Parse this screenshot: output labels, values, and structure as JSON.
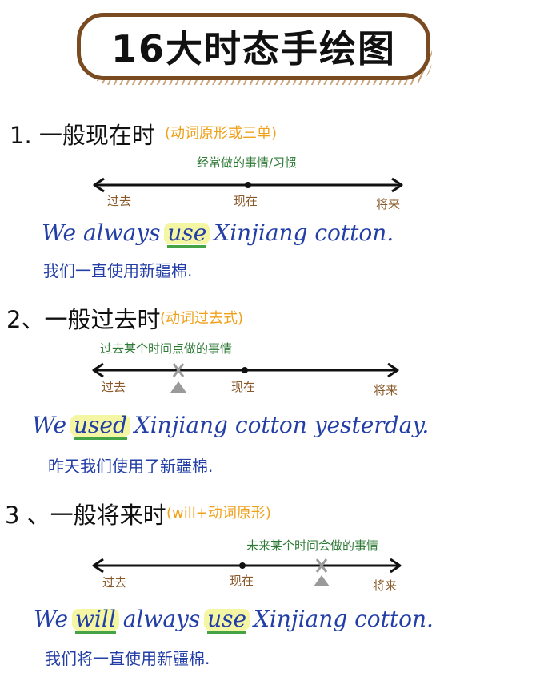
{
  "title": "16大时态手绘图",
  "sections": [
    {
      "heading": "1. 一般现在时",
      "note": "(动词原形或三单)",
      "time_note": "经常做的事情/习惯",
      "labels": {
        "past": "过去",
        "now": "现在",
        "future": "将来"
      },
      "sentence": {
        "pre": "We always ",
        "hl": "use",
        "post": " Xinjiang cotton."
      },
      "translation": "我们一直使用新疆棉."
    },
    {
      "heading": "2、一般过去时",
      "note": "(动词过去式)",
      "time_note": "过去某个时间点做的事情",
      "labels": {
        "past": "过去",
        "now": "现在",
        "future": "将来"
      },
      "sentence": {
        "pre": "We ",
        "hl": "used",
        "post": " Xinjiang cotton yesterday."
      },
      "translation": "昨天我们使用了新疆棉."
    },
    {
      "heading": "3 、一般将来时",
      "note": "(will+动词原形)",
      "time_note": "未来某个时间会做的事情",
      "labels": {
        "past": "过去",
        "now": "现在",
        "future": "将来"
      },
      "sentence": {
        "pre": "We ",
        "hl": "will",
        "mid": " always ",
        "hl2": "use",
        "post": " Xinjiang cotton."
      },
      "translation": "我们将一直使用新疆棉."
    }
  ],
  "colors": {
    "title_border": "#7a4a21",
    "note": "#f0a11b",
    "time_note": "#2d7a35",
    "label": "#8a5a2b",
    "sentence": "#233fa6",
    "marker": "#9a9a9a"
  }
}
